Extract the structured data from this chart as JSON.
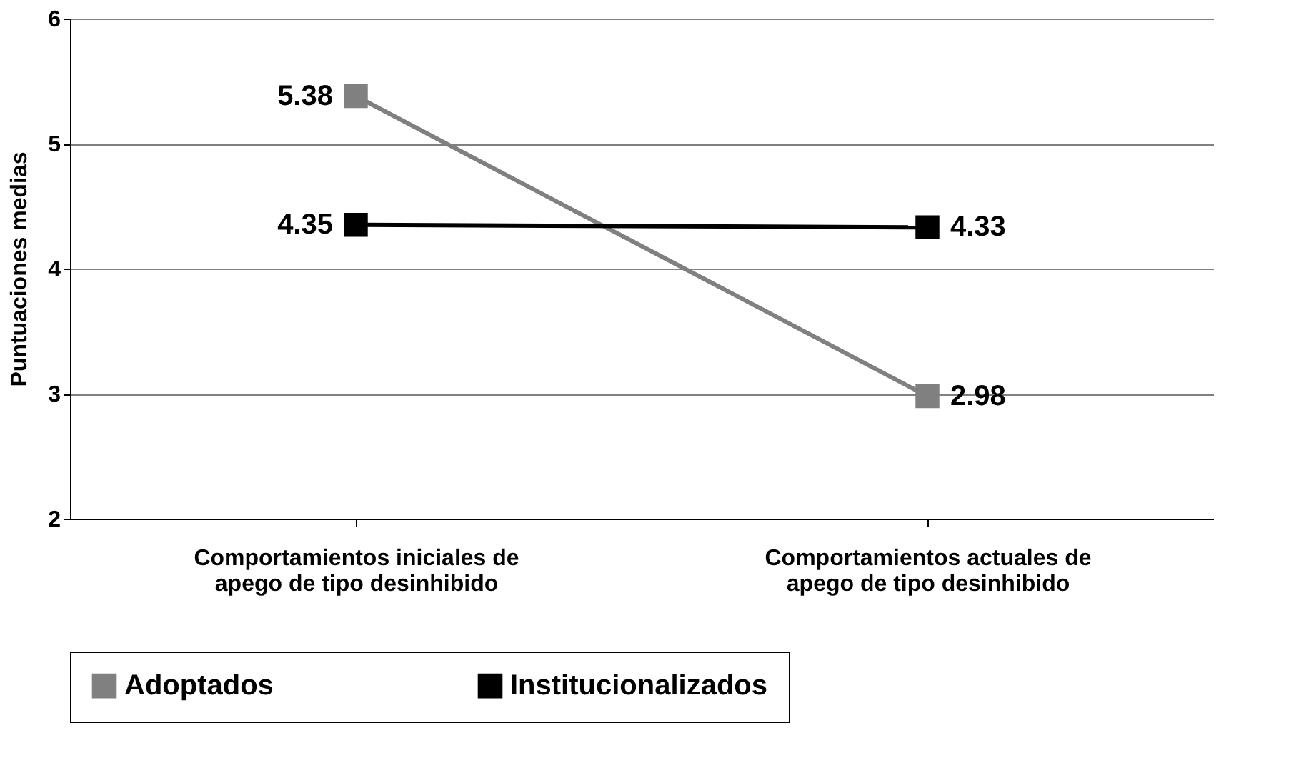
{
  "chart_data": {
    "type": "line",
    "ylabel": "Puntuaciones medias",
    "categories": [
      "Comportamientos iniciales de apego de tipo desinhibido",
      "Comportamientos actuales de apego de tipo desinhibido"
    ],
    "series": [
      {
        "name": "Adoptados",
        "color": "#808080",
        "values": [
          5.38,
          2.98
        ]
      },
      {
        "name": "Institucionalizados",
        "color": "#000000",
        "values": [
          4.35,
          4.33
        ]
      }
    ],
    "ylim": [
      2,
      6
    ],
    "yticks": [
      2,
      3,
      4,
      5,
      6
    ],
    "grid": "y",
    "legend": "bottom",
    "marker": "square",
    "line_style": "solid",
    "data_labels": true
  }
}
